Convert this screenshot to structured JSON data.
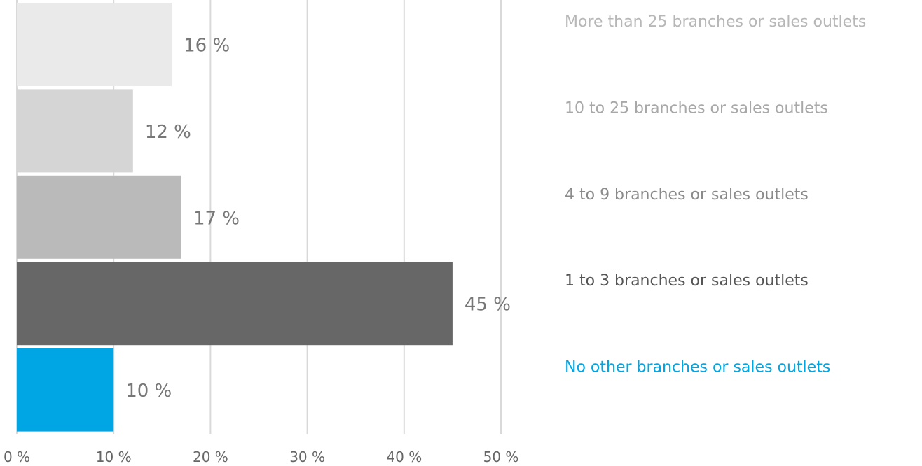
{
  "chart_data": {
    "type": "bar",
    "orientation": "horizontal",
    "title": "",
    "xlabel": "",
    "ylabel": "",
    "xlim": [
      0,
      50
    ],
    "x_tick_labels": [
      "0 %",
      "10 %",
      "20 %",
      "30 %",
      "40 %",
      "50 %"
    ],
    "grid": true,
    "legend": "none",
    "bars": [
      {
        "category": "More than 25 branches or sales outlets",
        "value": 16,
        "label": "16 %",
        "color": "#eaeaea",
        "label_color": "#b7b7b7"
      },
      {
        "category": "10 to 25 branches or sales outlets",
        "value": 12,
        "label": "12 %",
        "color": "#d5d5d5",
        "label_color": "#a8a8a8"
      },
      {
        "category": "4 to 9 branches or sales outlets",
        "value": 17,
        "label": "17 %",
        "color": "#bababa",
        "label_color": "#8a8a8a"
      },
      {
        "category": "1 to 3 branches or sales outlets",
        "value": 45,
        "label": "45 %",
        "color": "#676767",
        "label_color": "#555555"
      },
      {
        "category": "No other branches or sales outlets",
        "value": 10,
        "label": "10 %",
        "color": "#00a5e3",
        "label_color": "#00a5e3"
      }
    ]
  }
}
